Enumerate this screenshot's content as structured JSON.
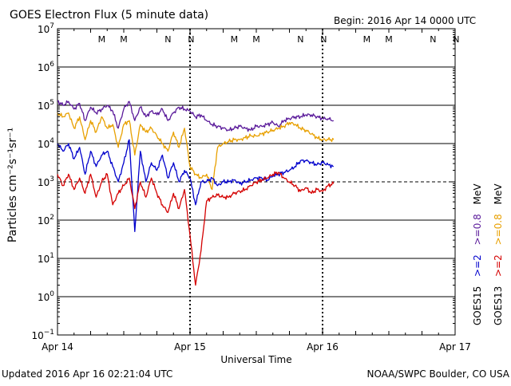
{
  "chart_data": {
    "type": "line",
    "title": "GOES Electron Flux (5 minute data)",
    "begin": "Begin: 2016 Apr 14 0000 UTC",
    "xlabel": "Universal Time",
    "ylabel": "Particles cm⁻²s⁻¹sr⁻¹",
    "updated": "Updated 2016 Apr 16 02:21:04 UTC",
    "credit": "NOAA/SWPC Boulder, CO USA",
    "x_unit": "hours since 2016 Apr 14 0000 UTC",
    "xlim": [
      0,
      72
    ],
    "ylim_log10": [
      -1,
      7
    ],
    "x_ticks": [
      {
        "x": 0,
        "label": "Apr 14"
      },
      {
        "x": 24,
        "label": "Apr 15"
      },
      {
        "x": 48,
        "label": "Apr 16"
      },
      {
        "x": 72,
        "label": "Apr 17"
      }
    ],
    "y_ticks": [
      {
        "exp": 7,
        "label": "7"
      },
      {
        "exp": 6,
        "label": "6"
      },
      {
        "exp": 5,
        "label": "5"
      },
      {
        "exp": 4,
        "label": "4"
      },
      {
        "exp": 3,
        "label": "3"
      },
      {
        "exp": 2,
        "label": "2"
      },
      {
        "exp": 1,
        "label": "1"
      },
      {
        "exp": 0,
        "label": "0"
      },
      {
        "exp": -1,
        "label": "−1"
      }
    ],
    "tick_base": "10",
    "threshold": {
      "value_log10": 3,
      "style": "dashed"
    },
    "day_markers": [
      24,
      48
    ],
    "markers": [
      {
        "x": 8,
        "label": "M",
        "color": "#d40000"
      },
      {
        "x": 12,
        "label": "M",
        "color": "#0000cc"
      },
      {
        "x": 20,
        "label": "N",
        "color": "#d40000"
      },
      {
        "x": 24.2,
        "label": "N",
        "color": "#0000cc"
      },
      {
        "x": 32,
        "label": "M",
        "color": "#d40000"
      },
      {
        "x": 36,
        "label": "M",
        "color": "#0000cc"
      },
      {
        "x": 44,
        "label": "N",
        "color": "#d40000"
      },
      {
        "x": 48.2,
        "label": "N",
        "color": "#0000cc"
      },
      {
        "x": 56,
        "label": "M",
        "color": "#d40000"
      },
      {
        "x": 60,
        "label": "M",
        "color": "#0000cc"
      },
      {
        "x": 68,
        "label": "N",
        "color": "#d40000"
      },
      {
        "x": 72.2,
        "label": "N",
        "color": "#0000cc"
      }
    ],
    "legend": {
      "goes15": {
        "name": "GOES15",
        "ge2": ">=2",
        "ge08": ">=0.8",
        "color_ge2": "#0000cc",
        "color_ge08": "#5a1a9a"
      },
      "goes13": {
        "name": "GOES13",
        "ge2": ">=2",
        "ge08": ">=0.8",
        "color_ge2": "#d40000",
        "color_ge08": "#e8a000"
      },
      "unit": "MeV"
    },
    "series": [
      {
        "name": "GOES15 >=0.8 MeV",
        "color": "#5a1a9a",
        "y_scale": "log10",
        "x": [
          0,
          1,
          2,
          3,
          4,
          5,
          6,
          7,
          8,
          9,
          10,
          11,
          12,
          13,
          14,
          15,
          16,
          17,
          18,
          19,
          20,
          21,
          22,
          23,
          24,
          25,
          26,
          27,
          28,
          29,
          30,
          31,
          32,
          33,
          34,
          35,
          36,
          37,
          38,
          39,
          40,
          41,
          42,
          43,
          44,
          45,
          46,
          47,
          48,
          49,
          50
        ],
        "values": [
          5.1,
          5.0,
          5.1,
          4.9,
          5.05,
          4.6,
          4.95,
          4.8,
          4.9,
          5.0,
          4.85,
          4.4,
          4.9,
          5.1,
          4.6,
          4.95,
          4.7,
          4.85,
          4.75,
          4.9,
          4.6,
          4.8,
          4.95,
          4.9,
          4.85,
          4.7,
          4.75,
          4.6,
          4.5,
          4.45,
          4.4,
          4.35,
          4.4,
          4.45,
          4.4,
          4.35,
          4.45,
          4.45,
          4.5,
          4.55,
          4.45,
          4.6,
          4.65,
          4.7,
          4.7,
          4.75,
          4.75,
          4.7,
          4.65,
          4.65,
          4.6
        ]
      },
      {
        "name": "GOES13 >=0.8 MeV",
        "color": "#e8a000",
        "y_scale": "log10",
        "x": [
          0,
          1,
          2,
          3,
          4,
          5,
          6,
          7,
          8,
          9,
          10,
          11,
          12,
          13,
          14,
          15,
          16,
          17,
          18,
          19,
          20,
          21,
          22,
          23,
          24,
          25,
          26,
          27,
          28,
          29,
          30,
          31,
          32,
          33,
          34,
          35,
          36,
          37,
          38,
          39,
          40,
          41,
          42,
          43,
          44,
          45,
          46,
          47,
          48,
          49,
          50
        ],
        "values": [
          4.8,
          4.7,
          4.8,
          4.4,
          4.7,
          4.1,
          4.6,
          4.3,
          4.7,
          4.4,
          4.5,
          3.9,
          4.5,
          4.6,
          3.7,
          4.5,
          4.3,
          4.4,
          4.2,
          4.0,
          3.8,
          4.3,
          3.9,
          4.4,
          3.4,
          3.2,
          3.1,
          3.2,
          2.8,
          3.9,
          4.0,
          4.05,
          4.1,
          4.1,
          4.15,
          4.2,
          4.2,
          4.25,
          4.3,
          4.35,
          4.4,
          4.45,
          4.55,
          4.5,
          4.4,
          4.35,
          4.25,
          4.15,
          4.1,
          4.1,
          4.1
        ]
      },
      {
        "name": "GOES15 >=2 MeV",
        "color": "#0000cc",
        "y_scale": "log10",
        "x": [
          0,
          1,
          2,
          3,
          4,
          5,
          6,
          7,
          8,
          9,
          10,
          11,
          12,
          13,
          14,
          15,
          16,
          17,
          18,
          19,
          20,
          21,
          22,
          23,
          24,
          25,
          26,
          27,
          28,
          29,
          30,
          31,
          32,
          33,
          34,
          35,
          36,
          37,
          38,
          39,
          40,
          41,
          42,
          43,
          44,
          45,
          46,
          47,
          48,
          49,
          50
        ],
        "values": [
          4.0,
          3.8,
          4.0,
          3.6,
          3.9,
          3.2,
          3.8,
          3.4,
          3.7,
          3.8,
          3.4,
          3.0,
          3.5,
          4.1,
          1.7,
          3.8,
          3.0,
          3.5,
          3.3,
          3.7,
          3.1,
          3.5,
          3.0,
          3.3,
          3.1,
          2.4,
          3.0,
          3.0,
          3.1,
          2.9,
          3.0,
          3.0,
          3.05,
          2.95,
          3.0,
          3.05,
          3.1,
          3.1,
          3.05,
          3.15,
          3.2,
          3.25,
          3.3,
          3.4,
          3.55,
          3.55,
          3.5,
          3.45,
          3.5,
          3.45,
          3.4
        ]
      },
      {
        "name": "GOES13 >=2 MeV",
        "color": "#d40000",
        "y_scale": "log10",
        "x": [
          0,
          1,
          2,
          3,
          4,
          5,
          6,
          7,
          8,
          9,
          10,
          11,
          12,
          13,
          14,
          15,
          16,
          17,
          18,
          19,
          20,
          21,
          22,
          23,
          24,
          25,
          26,
          27,
          28,
          29,
          30,
          31,
          32,
          33,
          34,
          35,
          36,
          37,
          38,
          39,
          40,
          41,
          42,
          43,
          44,
          45,
          46,
          47,
          48,
          49,
          50
        ],
        "values": [
          3.2,
          2.9,
          3.2,
          2.8,
          3.1,
          2.7,
          3.2,
          2.6,
          3.0,
          3.2,
          2.4,
          2.7,
          2.9,
          3.1,
          2.3,
          3.0,
          2.6,
          3.1,
          2.7,
          2.4,
          2.2,
          2.7,
          2.3,
          2.8,
          1.6,
          0.3,
          1.2,
          2.5,
          2.6,
          2.65,
          2.6,
          2.6,
          2.7,
          2.75,
          2.8,
          2.9,
          3.0,
          3.05,
          3.1,
          3.2,
          3.25,
          3.1,
          3.0,
          2.9,
          2.75,
          2.85,
          2.7,
          2.8,
          2.75,
          2.9,
          2.95
        ]
      }
    ]
  }
}
